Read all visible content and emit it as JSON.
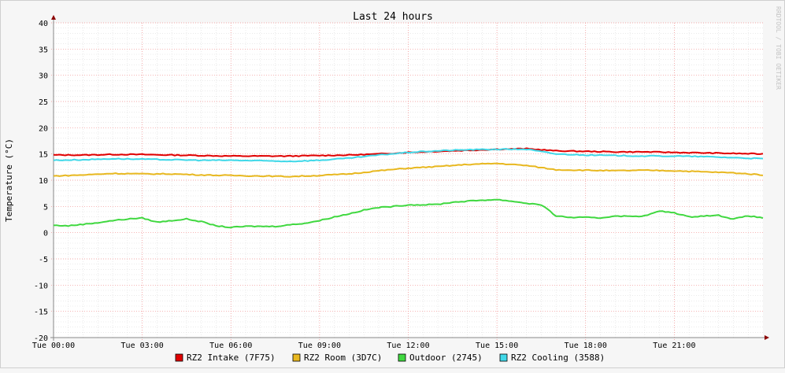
{
  "chart_data": {
    "type": "line",
    "title": "Last 24 hours",
    "ylabel": "Temperature (°C)",
    "xlabel": "",
    "watermark": "RRDTOOL / TOBI OETIKER",
    "ylim": [
      -20,
      40
    ],
    "yticks": [
      40,
      35,
      30,
      25,
      20,
      15,
      10,
      5,
      0,
      -5,
      -10,
      -15,
      -20
    ],
    "xlim": [
      0,
      24
    ],
    "xticks": [
      {
        "x": 0,
        "label": "Tue 00:00"
      },
      {
        "x": 3,
        "label": "Tue 03:00"
      },
      {
        "x": 6,
        "label": "Tue 06:00"
      },
      {
        "x": 9,
        "label": "Tue 09:00"
      },
      {
        "x": 12,
        "label": "Tue 12:00"
      },
      {
        "x": 15,
        "label": "Tue 15:00"
      },
      {
        "x": 18,
        "label": "Tue 18:00"
      },
      {
        "x": 21,
        "label": "Tue 21:00"
      }
    ],
    "grid": true,
    "legend_position": "bottom",
    "series": [
      {
        "name": "RZ2 Intake (7F75)",
        "color": "#e00000",
        "x": [
          0,
          1,
          2,
          3,
          4,
          5,
          6,
          7,
          8,
          9,
          10,
          11,
          12,
          13,
          14,
          15,
          16,
          17,
          18,
          19,
          20,
          21,
          22,
          23,
          24
        ],
        "y": [
          14.8,
          14.8,
          14.9,
          14.9,
          14.8,
          14.7,
          14.6,
          14.6,
          14.6,
          14.7,
          14.8,
          15.0,
          15.3,
          15.5,
          15.7,
          15.9,
          16.0,
          15.6,
          15.5,
          15.4,
          15.4,
          15.3,
          15.2,
          15.1,
          15.0
        ]
      },
      {
        "name": "RZ2 Room (3D7C)",
        "color": "#e8b820",
        "x": [
          0,
          1,
          2,
          3,
          4,
          5,
          6,
          7,
          8,
          9,
          10,
          11,
          12,
          13,
          14,
          15,
          16,
          17,
          18,
          19,
          20,
          21,
          22,
          23,
          24
        ],
        "y": [
          10.8,
          11.0,
          11.3,
          11.2,
          11.2,
          11.0,
          10.9,
          10.8,
          10.7,
          10.9,
          11.2,
          11.8,
          12.3,
          12.6,
          13.0,
          13.2,
          12.8,
          12.0,
          11.9,
          11.8,
          11.9,
          11.8,
          11.6,
          11.4,
          11.0
        ]
      },
      {
        "name": "Outdoor (2745)",
        "color": "#40d840",
        "x": [
          0,
          0.5,
          1,
          1.5,
          2,
          2.5,
          3,
          3.5,
          4,
          4.5,
          5,
          5.5,
          6,
          6.5,
          7,
          7.5,
          8,
          8.5,
          9,
          9.5,
          10,
          10.5,
          11,
          11.5,
          12,
          12.5,
          13,
          13.5,
          14,
          14.5,
          15,
          15.5,
          16,
          16.5,
          17,
          17.5,
          18,
          18.5,
          19,
          19.5,
          20,
          20.5,
          21,
          21.5,
          22,
          22.5,
          23,
          23.5,
          24
        ],
        "y": [
          1.4,
          1.3,
          1.6,
          1.9,
          2.3,
          2.6,
          2.8,
          2.0,
          2.3,
          2.6,
          2.1,
          1.3,
          1.0,
          1.2,
          1.2,
          1.2,
          1.5,
          1.8,
          2.3,
          3.0,
          3.6,
          4.3,
          4.8,
          5.0,
          5.3,
          5.3,
          5.4,
          5.8,
          6.0,
          6.2,
          6.3,
          6.0,
          5.6,
          5.3,
          3.2,
          2.9,
          2.9,
          2.8,
          3.2,
          3.1,
          3.2,
          4.1,
          3.8,
          3.0,
          3.2,
          3.3,
          2.6,
          3.2,
          2.8
        ]
      },
      {
        "name": "RZ2 Cooling (3588)",
        "color": "#40d8e8",
        "x": [
          0,
          1,
          2,
          3,
          4,
          5,
          6,
          7,
          8,
          9,
          10,
          11,
          12,
          13,
          14,
          15,
          16,
          17,
          18,
          19,
          20,
          21,
          22,
          23,
          24
        ],
        "y": [
          13.8,
          13.9,
          14.1,
          14.0,
          13.9,
          13.8,
          13.8,
          13.7,
          13.6,
          13.8,
          14.2,
          14.8,
          15.3,
          15.6,
          15.8,
          15.9,
          15.9,
          15.0,
          14.8,
          14.7,
          14.6,
          14.6,
          14.5,
          14.3,
          14.1
        ]
      }
    ]
  }
}
